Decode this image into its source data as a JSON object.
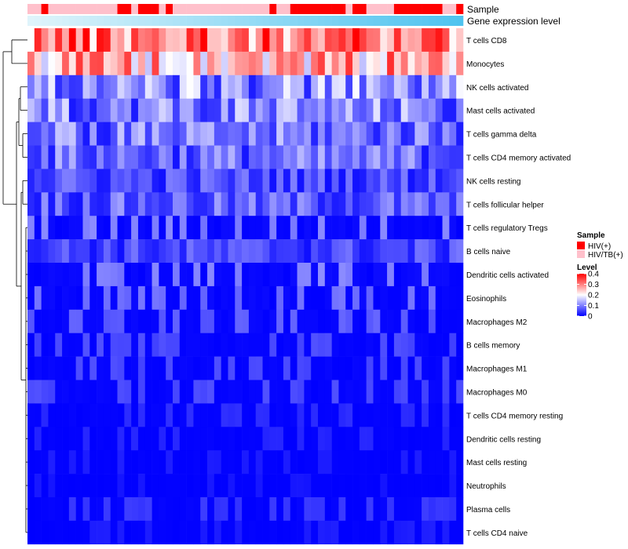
{
  "chart_data": {
    "type": "heatmap",
    "title": "",
    "annotation_rows": [
      "Sample",
      "Gene expression level"
    ],
    "sample_group_labels": [
      "HIV(+)",
      "HIV/TB(+)"
    ],
    "sample_groups": [
      2,
      2,
      1,
      2,
      2,
      2,
      2,
      2,
      2,
      2,
      2,
      2,
      2,
      1,
      1,
      2,
      1,
      1,
      1,
      2,
      1,
      2,
      2,
      2,
      2,
      2,
      2,
      2,
      2,
      2,
      2,
      2,
      2,
      2,
      2,
      1,
      2,
      2,
      1,
      1,
      1,
      1,
      1,
      1,
      1,
      1,
      2,
      1,
      1,
      2,
      2,
      2,
      2,
      1,
      1,
      1,
      1,
      1,
      1,
      1,
      2,
      2,
      1
    ],
    "rows": [
      "T cells CD8",
      "Monocytes",
      "NK cells activated",
      "Mast cells activated",
      "T cells gamma delta",
      "T cells CD4 memory activated",
      "NK cells resting",
      "T cells follicular helper",
      "T cells regulatory  Tregs",
      "B cells naive",
      "Dendritic cells activated",
      "Eosinophils",
      "Macrophages M2",
      "B cells memory",
      "Macrophages M1",
      "Macrophages M0",
      "T cells CD4 memory resting",
      "Dendritic cells resting",
      "Mast cells resting",
      "Neutrophils",
      "Plasma cells",
      "T cells CD4 naive"
    ],
    "n_samples": 63,
    "legend": {
      "sample_title": "Sample",
      "sample_colors": [
        "#ff0000",
        "#ffc0cb"
      ],
      "level_title": "Level",
      "level_ticks": [
        "0.4",
        "0.3",
        "0.2",
        "0.1",
        "0"
      ],
      "level_tick_values": [
        0.4,
        0.3,
        0.2,
        0.1,
        0
      ],
      "level_range": [
        0,
        0.4
      ]
    },
    "colorscale": {
      "low": "#0000ff",
      "mid": "#ffffff",
      "high": "#ff0000",
      "low_value": 0,
      "mid_value": 0.2,
      "high_value": 0.4
    },
    "gradient_colors": [
      "#dff4fb",
      "#4fc3ef"
    ],
    "row_means": [
      0.31,
      0.26,
      0.095,
      0.085,
      0.075,
      0.07,
      0.05,
      0.06,
      0.035,
      0.045,
      0.035,
      0.03,
      0.025,
      0.02,
      0.02,
      0.02,
      0.012,
      0.01,
      0.008,
      0.006,
      0.015,
      0.008
    ],
    "dendrogram_merges": [
      [
        0,
        1
      ],
      [
        2,
        3
      ],
      [
        4,
        5
      ],
      [
        6,
        7
      ],
      [
        8,
        9
      ],
      [
        10,
        11
      ],
      [
        12,
        13
      ],
      [
        14,
        15
      ],
      [
        16,
        17
      ],
      [
        18,
        19
      ],
      [
        20,
        21
      ]
    ]
  }
}
